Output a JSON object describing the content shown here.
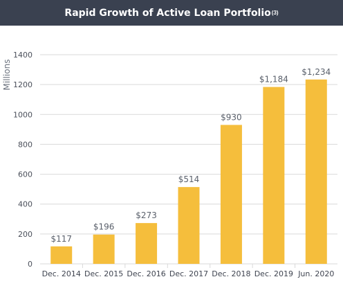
{
  "header": {
    "title": "Rapid Growth of Active Loan Portfolio",
    "footnote": "(3)"
  },
  "colors": {
    "header_bg": "#3a4150",
    "bar": "#f5be3c",
    "grid": "#d9d9d9"
  },
  "chart_data": {
    "type": "bar",
    "title": "Rapid Growth of Active Loan Portfolio",
    "xlabel": "",
    "ylabel": "Millions",
    "ylim": [
      0,
      1400
    ],
    "yticks": [
      0,
      200,
      400,
      600,
      800,
      1000,
      1200,
      1400
    ],
    "grid": true,
    "categories": [
      "Dec. 2014",
      "Dec. 2015",
      "Dec. 2016",
      "Dec. 2017",
      "Dec. 2018",
      "Dec. 2019",
      "Jun. 2020"
    ],
    "values": [
      117,
      196,
      273,
      514,
      930,
      1184,
      1234
    ],
    "data_labels": [
      "$117",
      "$196",
      "$273",
      "$514",
      "$930",
      "$1,184",
      "$1,234"
    ]
  }
}
